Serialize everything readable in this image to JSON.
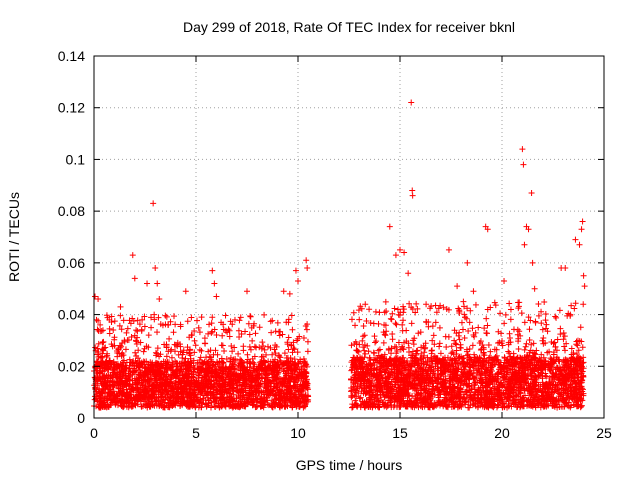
{
  "chart_data": {
    "type": "scatter",
    "title": "Day 299 of 2018, Rate Of TEC Index for receiver bknl",
    "xlabel": "GPS time / hours",
    "ylabel": "ROTI / TECUs",
    "xlim": [
      0,
      25
    ],
    "ylim": [
      0,
      0.14
    ],
    "xticks": [
      0,
      5,
      10,
      15,
      20,
      25
    ],
    "xtick_labels": [
      "0",
      "5",
      "10",
      "15",
      "20",
      "25"
    ],
    "yticks": [
      0,
      0.02,
      0.04,
      0.06,
      0.08,
      0.1,
      0.12,
      0.14
    ],
    "ytick_labels": [
      "0",
      "0.02",
      "0.04",
      "0.06",
      "0.08",
      "0.1",
      "0.12",
      "0.14"
    ],
    "grid": true,
    "marker": "+",
    "color": "#ff0000",
    "data_gap_hours": [
      10.5,
      12.6
    ],
    "series": [
      {
        "name": "ROTI",
        "points": [
          [
            0.05,
            0.047
          ],
          [
            0.2,
            0.046
          ],
          [
            0.3,
            0.036
          ],
          [
            1.3,
            0.043
          ],
          [
            1.9,
            0.063
          ],
          [
            2.0,
            0.054
          ],
          [
            2.6,
            0.052
          ],
          [
            2.9,
            0.083
          ],
          [
            3.0,
            0.058
          ],
          [
            3.1,
            0.052
          ],
          [
            3.2,
            0.046
          ],
          [
            4.5,
            0.049
          ],
          [
            5.8,
            0.057
          ],
          [
            5.9,
            0.052
          ],
          [
            6.0,
            0.047
          ],
          [
            7.5,
            0.049
          ],
          [
            9.3,
            0.049
          ],
          [
            9.6,
            0.048
          ],
          [
            9.9,
            0.057
          ],
          [
            10.0,
            0.053
          ],
          [
            10.4,
            0.061
          ],
          [
            10.45,
            0.058
          ],
          [
            14.5,
            0.074
          ],
          [
            14.8,
            0.063
          ],
          [
            15.0,
            0.065
          ],
          [
            15.2,
            0.064
          ],
          [
            15.4,
            0.056
          ],
          [
            15.55,
            0.122
          ],
          [
            15.6,
            0.088
          ],
          [
            15.62,
            0.086
          ],
          [
            17.4,
            0.065
          ],
          [
            17.8,
            0.051
          ],
          [
            18.3,
            0.06
          ],
          [
            18.6,
            0.049
          ],
          [
            19.2,
            0.074
          ],
          [
            19.3,
            0.073
          ],
          [
            20.1,
            0.053
          ],
          [
            21.0,
            0.104
          ],
          [
            21.05,
            0.098
          ],
          [
            21.1,
            0.067
          ],
          [
            21.2,
            0.074
          ],
          [
            21.3,
            0.073
          ],
          [
            21.45,
            0.087
          ],
          [
            21.5,
            0.06
          ],
          [
            21.6,
            0.05
          ],
          [
            22.9,
            0.058
          ],
          [
            23.1,
            0.058
          ],
          [
            23.6,
            0.069
          ],
          [
            23.8,
            0.067
          ],
          [
            23.9,
            0.073
          ],
          [
            23.95,
            0.076
          ],
          [
            24.0,
            0.055
          ],
          [
            24.05,
            0.051
          ]
        ],
        "dense_segments": [
          {
            "from": 0.0,
            "to": 10.5,
            "low": 0.004,
            "typical_high": 0.028,
            "frequent_high": 0.04
          },
          {
            "from": 12.6,
            "to": 24.0,
            "low": 0.004,
            "typical_high": 0.03,
            "frequent_high": 0.045
          }
        ]
      }
    ]
  }
}
